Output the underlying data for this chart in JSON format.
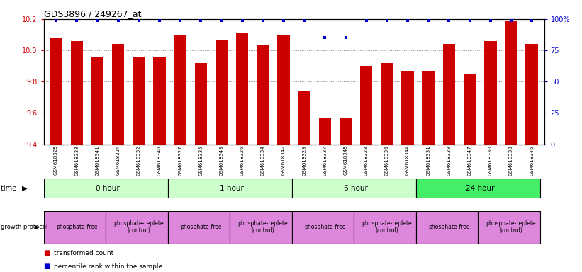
{
  "title": "GDS3896 / 249267_at",
  "samples": [
    "GSM618325",
    "GSM618333",
    "GSM618341",
    "GSM618324",
    "GSM618332",
    "GSM618340",
    "GSM618327",
    "GSM618335",
    "GSM618343",
    "GSM618326",
    "GSM618334",
    "GSM618342",
    "GSM618329",
    "GSM618337",
    "GSM618345",
    "GSM618328",
    "GSM618336",
    "GSM618344",
    "GSM618331",
    "GSM618339",
    "GSM618347",
    "GSM618330",
    "GSM618338",
    "GSM618346"
  ],
  "transformed_counts": [
    10.08,
    10.06,
    9.96,
    10.04,
    9.96,
    9.96,
    10.1,
    9.92,
    10.07,
    10.11,
    10.03,
    10.1,
    9.74,
    9.57,
    9.57,
    9.9,
    9.92,
    9.87,
    9.87,
    10.04,
    9.85,
    10.06,
    10.19,
    10.04
  ],
  "percentile_values": [
    99,
    99,
    99,
    99,
    99,
    99,
    99,
    99,
    99,
    99,
    99,
    99,
    99,
    85,
    85,
    99,
    99,
    99,
    99,
    99,
    99,
    99,
    99,
    99
  ],
  "bar_color": "#cc0000",
  "dot_color": "#0000cc",
  "ylim_left": [
    9.4,
    10.2
  ],
  "ylim_right": [
    0,
    100
  ],
  "yticks_left": [
    9.4,
    9.6,
    9.8,
    10.0,
    10.2
  ],
  "yticks_right": [
    0,
    25,
    50,
    75,
    100
  ],
  "ytick_labels_right": [
    "0",
    "25",
    "50",
    "75",
    "100%"
  ],
  "time_groups": [
    {
      "label": "0 hour",
      "start": 0,
      "end": 6,
      "color": "#ccffcc"
    },
    {
      "label": "1 hour",
      "start": 6,
      "end": 12,
      "color": "#ccffcc"
    },
    {
      "label": "6 hour",
      "start": 12,
      "end": 18,
      "color": "#ccffcc"
    },
    {
      "label": "24 hour",
      "start": 18,
      "end": 24,
      "color": "#44ee66"
    }
  ],
  "protocol_groups": [
    {
      "label": "phosphate-free",
      "start": 0,
      "end": 3
    },
    {
      "label": "phosphate-replete\n(control)",
      "start": 3,
      "end": 6
    },
    {
      "label": "phosphate-free",
      "start": 6,
      "end": 9
    },
    {
      "label": "phosphate-replete\n(control)",
      "start": 9,
      "end": 12
    },
    {
      "label": "phosphate-free",
      "start": 12,
      "end": 15
    },
    {
      "label": "phosphate-replete\n(control)",
      "start": 15,
      "end": 18
    },
    {
      "label": "phosphate-free",
      "start": 18,
      "end": 21
    },
    {
      "label": "phosphate-replete\n(control)",
      "start": 21,
      "end": 24
    }
  ],
  "protocol_color": "#dd88dd",
  "background_color": "#ffffff",
  "grid_color": "#888888",
  "tick_color_left": "#cc0000",
  "tick_color_right": "#0000cc"
}
